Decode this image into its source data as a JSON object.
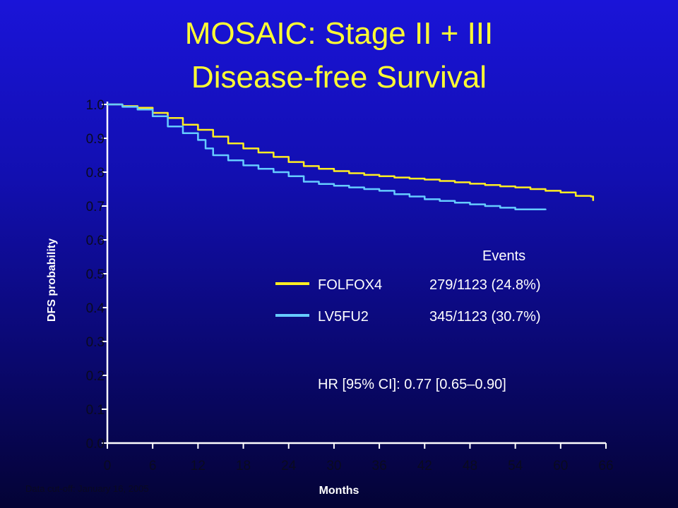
{
  "chart_data": {
    "type": "line",
    "title_lines": [
      "MOSAIC: Stage II + III",
      "Disease-free Survival"
    ],
    "xlabel": "Months",
    "ylabel": "DFS probability",
    "xlim": [
      0,
      66
    ],
    "ylim": [
      0.0,
      1.0
    ],
    "x_ticks": [
      0,
      6,
      12,
      18,
      24,
      30,
      36,
      42,
      48,
      54,
      60,
      66
    ],
    "y_ticks": [
      "0.0",
      "0.1",
      "0.2",
      "0.3",
      "0.4",
      "0.5",
      "0.6",
      "0.7",
      "0.8",
      "0.9",
      "1.0"
    ],
    "grid": false,
    "legend_header": "Events",
    "series": [
      {
        "name": "FOLFOX4",
        "events": "279/1123 (24.8%)",
        "color": "#ffee22",
        "points": [
          [
            0,
            1.0
          ],
          [
            2,
            0.995
          ],
          [
            4,
            0.99
          ],
          [
            6,
            0.975
          ],
          [
            8,
            0.96
          ],
          [
            10,
            0.94
          ],
          [
            12,
            0.925
          ],
          [
            14,
            0.905
          ],
          [
            16,
            0.885
          ],
          [
            18,
            0.87
          ],
          [
            20,
            0.858
          ],
          [
            22,
            0.845
          ],
          [
            24,
            0.83
          ],
          [
            26,
            0.818
          ],
          [
            28,
            0.81
          ],
          [
            30,
            0.803
          ],
          [
            32,
            0.797
          ],
          [
            34,
            0.792
          ],
          [
            36,
            0.788
          ],
          [
            38,
            0.784
          ],
          [
            40,
            0.781
          ],
          [
            42,
            0.778
          ],
          [
            44,
            0.774
          ],
          [
            46,
            0.77
          ],
          [
            48,
            0.766
          ],
          [
            50,
            0.762
          ],
          [
            52,
            0.758
          ],
          [
            54,
            0.755
          ],
          [
            56,
            0.75
          ],
          [
            58,
            0.745
          ],
          [
            60,
            0.74
          ],
          [
            62,
            0.73
          ],
          [
            64,
            0.728
          ],
          [
            64.3,
            0.715
          ]
        ]
      },
      {
        "name": "LV5FU2",
        "events": "345/1123 (30.7%)",
        "color": "#66ccff",
        "points": [
          [
            0,
            1.0
          ],
          [
            2,
            0.993
          ],
          [
            4,
            0.985
          ],
          [
            6,
            0.965
          ],
          [
            8,
            0.935
          ],
          [
            10,
            0.915
          ],
          [
            12,
            0.895
          ],
          [
            13,
            0.87
          ],
          [
            14,
            0.85
          ],
          [
            16,
            0.835
          ],
          [
            18,
            0.82
          ],
          [
            20,
            0.81
          ],
          [
            22,
            0.8
          ],
          [
            24,
            0.788
          ],
          [
            26,
            0.772
          ],
          [
            28,
            0.765
          ],
          [
            30,
            0.76
          ],
          [
            32,
            0.755
          ],
          [
            34,
            0.75
          ],
          [
            36,
            0.745
          ],
          [
            38,
            0.735
          ],
          [
            40,
            0.728
          ],
          [
            42,
            0.72
          ],
          [
            44,
            0.715
          ],
          [
            46,
            0.71
          ],
          [
            48,
            0.705
          ],
          [
            50,
            0.7
          ],
          [
            52,
            0.695
          ],
          [
            54,
            0.69
          ],
          [
            56,
            0.69
          ],
          [
            58,
            0.688
          ]
        ]
      }
    ],
    "annotation": "HR [95% CI]: 0.77 [0.65–0.90]",
    "footnote": "Data cut-off: January 16, 2005"
  }
}
